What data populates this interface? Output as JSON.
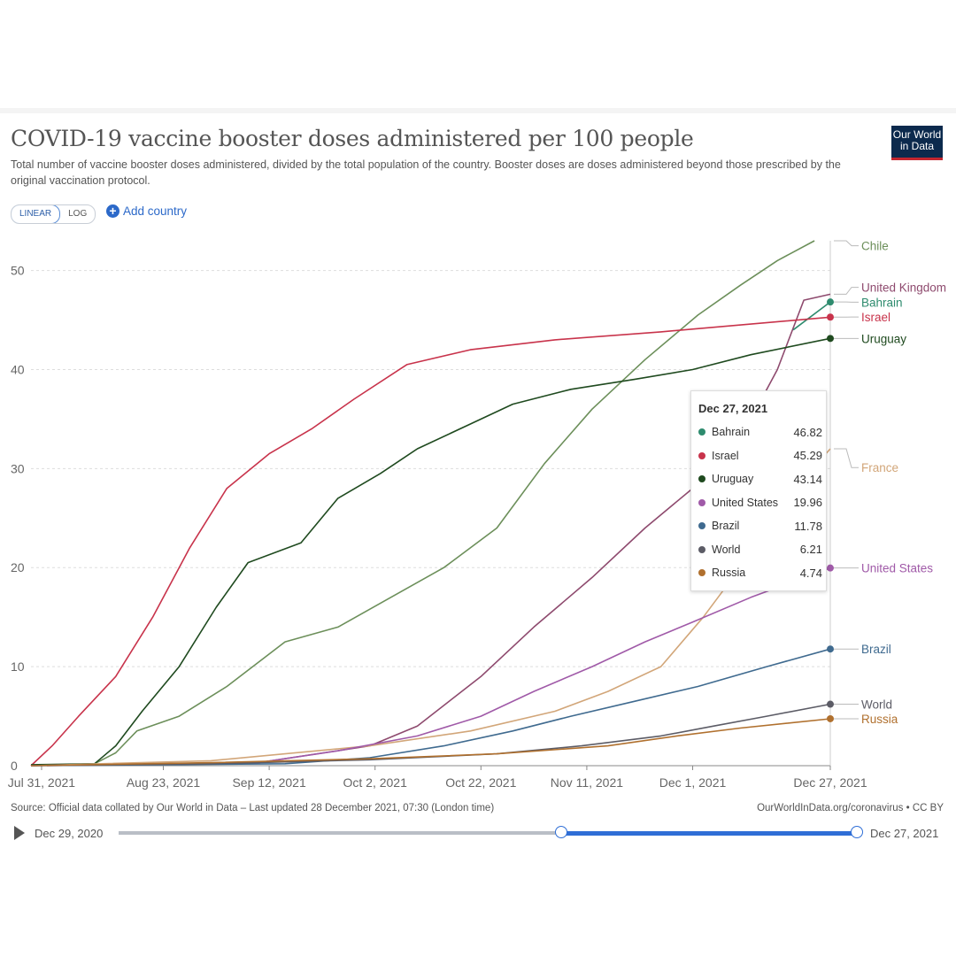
{
  "title": "COVID-19 vaccine booster doses administered per 100 people",
  "subtitle": "Total number of vaccine booster doses administered, divided by the total population of the country. Booster doses are doses administered beyond those prescribed by the original vaccination protocol.",
  "logo": {
    "line1": "Our World",
    "line2": "in Data"
  },
  "controls": {
    "linear_label": "LINEAR",
    "log_label": "LOG",
    "add_country_label": "Add country"
  },
  "source": "Source: Official data collated by Our World in Data – Last updated 28 December 2021, 07:30 (London time)",
  "credit": "OurWorldInData.org/coronavirus • CC BY",
  "timeline": {
    "start_label": "Dec 29, 2020",
    "end_label": "Dec 27, 2021",
    "range_start": 0.6,
    "range_end": 1.0
  },
  "tooltip": {
    "date": "Dec 27, 2021",
    "rows": [
      {
        "name": "Bahrain",
        "value": "46.82",
        "color": "#2e8b6e"
      },
      {
        "name": "Israel",
        "value": "45.29",
        "color": "#c8334b"
      },
      {
        "name": "Uruguay",
        "value": "43.14",
        "color": "#1f4a1f"
      },
      {
        "name": "United States",
        "value": "19.96",
        "color": "#a05aa8"
      },
      {
        "name": "Brazil",
        "value": "11.78",
        "color": "#3f6a8f"
      },
      {
        "name": "World",
        "value": "6.21",
        "color": "#5c5c66"
      },
      {
        "name": "Russia",
        "value": "4.74",
        "color": "#b0702e"
      }
    ]
  },
  "chart_data": {
    "type": "line",
    "title": "COVID-19 vaccine booster doses administered per 100 people",
    "xlabel": "",
    "ylabel": "",
    "x_ticks": [
      "Jul 31, 2021",
      "Aug 23, 2021",
      "Sep 12, 2021",
      "Oct 2, 2021",
      "Oct 22, 2021",
      "Nov 11, 2021",
      "Dec 1, 2021",
      "Dec 27, 2021"
    ],
    "x_range": [
      "2021-07-29",
      "2021-12-27"
    ],
    "y_ticks": [
      0,
      10,
      20,
      30,
      40,
      50
    ],
    "ylim": [
      0,
      53
    ],
    "grid": "horizontal dashed",
    "legend": "line labels at right",
    "series": [
      {
        "name": "Chile",
        "color": "#6c8f5a",
        "points": [
          [
            "2021-07-29",
            0
          ],
          [
            "2021-08-10",
            0.2
          ],
          [
            "2021-08-14",
            1.3
          ],
          [
            "2021-08-18",
            3.5
          ],
          [
            "2021-08-26",
            5
          ],
          [
            "2021-09-04",
            8
          ],
          [
            "2021-09-15",
            12.5
          ],
          [
            "2021-09-25",
            14
          ],
          [
            "2021-10-05",
            17
          ],
          [
            "2021-10-15",
            20
          ],
          [
            "2021-10-25",
            24
          ],
          [
            "2021-11-03",
            30.5
          ],
          [
            "2021-11-12",
            36
          ],
          [
            "2021-11-22",
            41
          ],
          [
            "2021-12-02",
            45.5
          ],
          [
            "2021-12-10",
            48.5
          ],
          [
            "2021-12-17",
            51
          ],
          [
            "2021-12-24",
            53
          ]
        ]
      },
      {
        "name": "United Kingdom",
        "color": "#8e4a6e",
        "points": [
          [
            "2021-08-01",
            0
          ],
          [
            "2021-09-10",
            0.3
          ],
          [
            "2021-10-01",
            2
          ],
          [
            "2021-10-10",
            4
          ],
          [
            "2021-10-22",
            9
          ],
          [
            "2021-11-01",
            14
          ],
          [
            "2021-11-12",
            19
          ],
          [
            "2021-11-22",
            24
          ],
          [
            "2021-12-01",
            28
          ],
          [
            "2021-12-10",
            33
          ],
          [
            "2021-12-17",
            40
          ],
          [
            "2021-12-22",
            47
          ],
          [
            "2021-12-27",
            47.6
          ]
        ]
      },
      {
        "name": "Bahrain",
        "color": "#2e8b6e",
        "points": [
          [
            "2021-12-20",
            44
          ],
          [
            "2021-12-27",
            46.82
          ]
        ]
      },
      {
        "name": "Israel",
        "color": "#c8334b",
        "points": [
          [
            "2021-07-29",
            0
          ],
          [
            "2021-08-02",
            2
          ],
          [
            "2021-08-07",
            5
          ],
          [
            "2021-08-14",
            9
          ],
          [
            "2021-08-21",
            15
          ],
          [
            "2021-08-28",
            22
          ],
          [
            "2021-09-04",
            28
          ],
          [
            "2021-09-12",
            31.5
          ],
          [
            "2021-09-20",
            34
          ],
          [
            "2021-09-28",
            37
          ],
          [
            "2021-10-08",
            40.5
          ],
          [
            "2021-10-20",
            42
          ],
          [
            "2021-11-05",
            43
          ],
          [
            "2021-11-25",
            43.8
          ],
          [
            "2021-12-27",
            45.29
          ]
        ]
      },
      {
        "name": "Uruguay",
        "color": "#1f4a1f",
        "points": [
          [
            "2021-07-29",
            0.1
          ],
          [
            "2021-08-10",
            0.2
          ],
          [
            "2021-08-14",
            2
          ],
          [
            "2021-08-19",
            5.5
          ],
          [
            "2021-08-26",
            10
          ],
          [
            "2021-09-02",
            16
          ],
          [
            "2021-09-08",
            20.5
          ],
          [
            "2021-09-18",
            22.5
          ],
          [
            "2021-09-25",
            27
          ],
          [
            "2021-10-03",
            29.5
          ],
          [
            "2021-10-10",
            32
          ],
          [
            "2021-10-20",
            34.5
          ],
          [
            "2021-10-28",
            36.5
          ],
          [
            "2021-11-08",
            38
          ],
          [
            "2021-11-20",
            39
          ],
          [
            "2021-12-01",
            40
          ],
          [
            "2021-12-12",
            41.5
          ],
          [
            "2021-12-27",
            43.14
          ]
        ]
      },
      {
        "name": "France",
        "color": "#d2a679",
        "points": [
          [
            "2021-07-29",
            0
          ],
          [
            "2021-09-01",
            0.5
          ],
          [
            "2021-10-01",
            2
          ],
          [
            "2021-10-20",
            3.5
          ],
          [
            "2021-11-05",
            5.5
          ],
          [
            "2021-11-15",
            7.5
          ],
          [
            "2021-11-25",
            10
          ],
          [
            "2021-12-03",
            15
          ],
          [
            "2021-12-10",
            20
          ],
          [
            "2021-12-17",
            26
          ],
          [
            "2021-12-27",
            32
          ]
        ]
      },
      {
        "name": "United States",
        "color": "#a05aa8",
        "points": [
          [
            "2021-07-29",
            0
          ],
          [
            "2021-09-10",
            0.3
          ],
          [
            "2021-09-25",
            1.5
          ],
          [
            "2021-10-10",
            3
          ],
          [
            "2021-10-22",
            5
          ],
          [
            "2021-11-01",
            7.5
          ],
          [
            "2021-11-12",
            10
          ],
          [
            "2021-11-22",
            12.5
          ],
          [
            "2021-12-01",
            14.5
          ],
          [
            "2021-12-12",
            17
          ],
          [
            "2021-12-27",
            19.96
          ]
        ]
      },
      {
        "name": "Brazil",
        "color": "#3f6a8f",
        "points": [
          [
            "2021-07-29",
            0
          ],
          [
            "2021-09-15",
            0.2
          ],
          [
            "2021-10-01",
            0.8
          ],
          [
            "2021-10-15",
            2
          ],
          [
            "2021-10-28",
            3.5
          ],
          [
            "2021-11-08",
            5
          ],
          [
            "2021-11-20",
            6.5
          ],
          [
            "2021-12-02",
            8
          ],
          [
            "2021-12-15",
            10
          ],
          [
            "2021-12-27",
            11.78
          ]
        ]
      },
      {
        "name": "World",
        "color": "#5c5c66",
        "points": [
          [
            "2021-07-29",
            0
          ],
          [
            "2021-09-01",
            0.2
          ],
          [
            "2021-10-01",
            0.6
          ],
          [
            "2021-10-25",
            1.2
          ],
          [
            "2021-11-10",
            2
          ],
          [
            "2021-11-25",
            3
          ],
          [
            "2021-12-05",
            4
          ],
          [
            "2021-12-15",
            5
          ],
          [
            "2021-12-27",
            6.21
          ]
        ]
      },
      {
        "name": "Russia",
        "color": "#b0702e",
        "points": [
          [
            "2021-07-29",
            0
          ],
          [
            "2021-09-01",
            0.3
          ],
          [
            "2021-10-01",
            0.7
          ],
          [
            "2021-10-25",
            1.2
          ],
          [
            "2021-11-15",
            2
          ],
          [
            "2021-11-28",
            3
          ],
          [
            "2021-12-10",
            3.8
          ],
          [
            "2021-12-27",
            4.74
          ]
        ]
      }
    ],
    "end_labels": [
      {
        "name": "Chile",
        "value": 53,
        "label_value": 52.5,
        "dot": false
      },
      {
        "name": "United Kingdom",
        "value": 47.6,
        "label_value": 48.3,
        "dot": false
      },
      {
        "name": "Bahrain",
        "value": 46.82,
        "label_value": 46.8,
        "dot": true
      },
      {
        "name": "Israel",
        "value": 45.29,
        "label_value": 45.3,
        "dot": true
      },
      {
        "name": "Uruguay",
        "value": 43.14,
        "label_value": 43.14,
        "dot": true
      },
      {
        "name": "France",
        "value": 32,
        "label_value": 30.1,
        "dot": false
      },
      {
        "name": "United States",
        "value": 19.96,
        "label_value": 19.96,
        "dot": true
      },
      {
        "name": "Brazil",
        "value": 11.78,
        "label_value": 11.78,
        "dot": true
      },
      {
        "name": "World",
        "value": 6.21,
        "label_value": 6.21,
        "dot": true
      },
      {
        "name": "Russia",
        "value": 4.74,
        "label_value": 4.74,
        "dot": true
      }
    ]
  }
}
